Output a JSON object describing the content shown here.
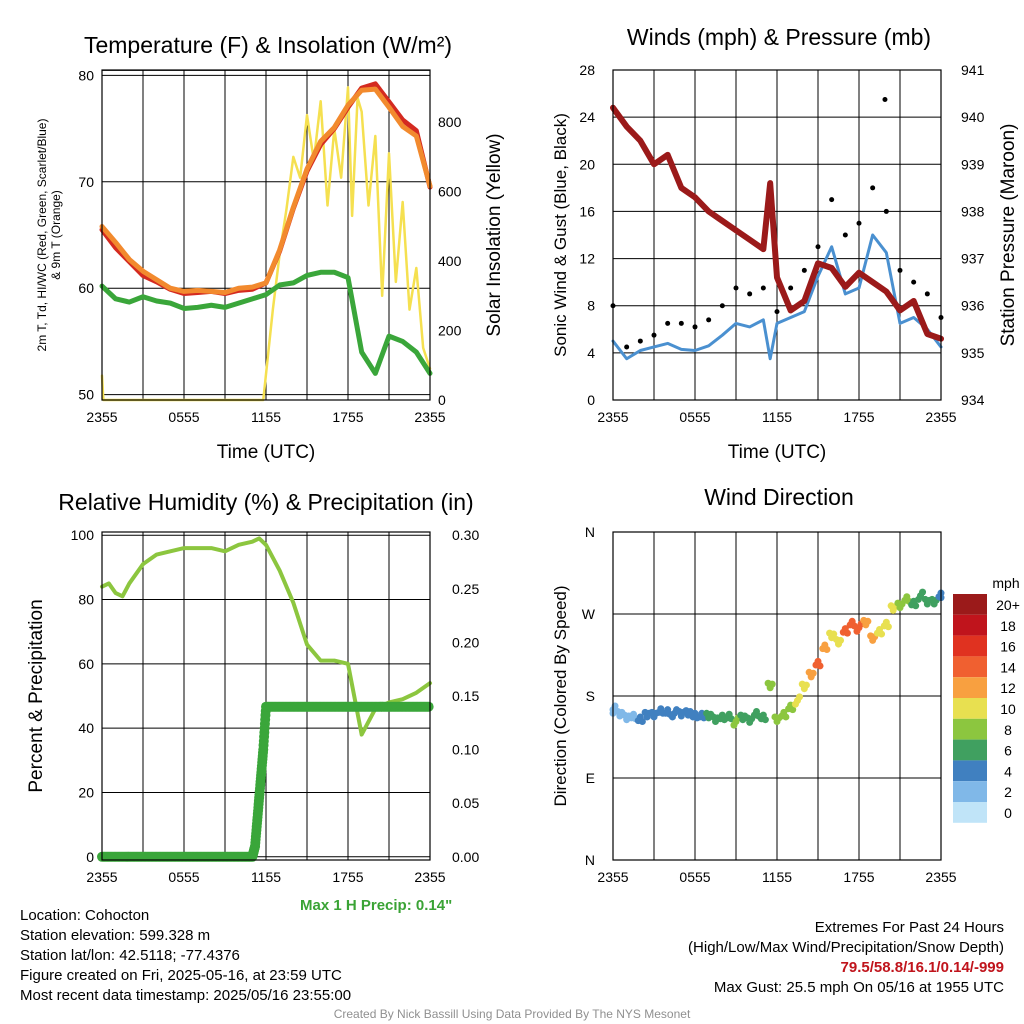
{
  "panels": {
    "temp": {
      "title": "Temperature (F) & Insolation (W/m²)",
      "xlabel": "Time (UTC)",
      "ylabel_left": [
        "2m T, T",
        "d",
        ", HI/WC (Red, Green, Scarlet/Blue)",
        "& 9m T (Orange)"
      ],
      "ylabel_right": "Solar Insolation (Yellow)"
    },
    "wind": {
      "title": "Winds (mph) & Pressure (mb)",
      "xlabel": "Time (UTC)",
      "ylabel_left": "Sonic Wind & Gust (Blue, Black)",
      "ylabel_right": "Station Pressure (Maroon)"
    },
    "rh": {
      "title": "Relative Humidity (%) & Precipitation (in)",
      "ylabel_left": "Percent & Precipitation",
      "max_precip": "Max 1 H Precip: 0.14\""
    },
    "dir": {
      "title": "Wind Direction",
      "ylabel_left": "Direction (Colored By Speed)",
      "legend_title": "mph"
    }
  },
  "info_left": [
    "Location: Cohocton",
    "Station elevation: 599.328 m",
    "Station lat/lon: 42.5118; -77.4376",
    "Figure created on Fri, 2025-05-16, at 23:59 UTC",
    "Most recent data timestamp: 2025/05/16 23:55:00"
  ],
  "info_right": {
    "line1": "Extremes For Past 24 Hours",
    "line2": "(High/Low/Max Wind/Precipitation/Snow Depth)",
    "extremes": "79.5/58.8/16.1/0.14/-999",
    "gust": "Max Gust: 25.5 mph On 05/16 at 1955 UTC"
  },
  "credit": "Created By Nick Bassill Using Data Provided By The NYS Mesonet",
  "colors": {
    "temp": "#d42a20",
    "dewpoint": "#3aa63a",
    "temp9m": "#f28a2e",
    "solar": "#f5e050",
    "wind": "#4a90d0",
    "gust": "#000000",
    "pressure": "#9b1a1a",
    "rh": "#8cc63f",
    "precip": "#3aa63a"
  },
  "chart_data": [
    {
      "type": "line",
      "title": "Temperature (F) & Insolation (W/m²)",
      "x_ticks": [
        "2355",
        "0555",
        "1155",
        "1755",
        "2355"
      ],
      "ylim": [
        49.5,
        80.5
      ],
      "y_ticks": [
        50,
        60,
        70,
        80
      ],
      "y2lim": [
        0,
        950
      ],
      "y2_ticks": [
        0,
        200,
        400,
        600,
        800
      ],
      "series": [
        {
          "name": "2m T",
          "color": "#d42a20",
          "axis": "left",
          "x": [
            0,
            1,
            2,
            3,
            4,
            5,
            6,
            7,
            8,
            9,
            10,
            11,
            12,
            13,
            14,
            15,
            16,
            17,
            18,
            19,
            20,
            21,
            22,
            23,
            24
          ],
          "y": [
            65.5,
            63.8,
            62.5,
            61.2,
            60.6,
            59.9,
            59.5,
            59.6,
            59.7,
            59.5,
            59.8,
            59.9,
            60.5,
            63.5,
            67.5,
            71,
            73.5,
            75,
            77,
            78.8,
            79.2,
            77.5,
            75.8,
            74.8,
            69.5
          ]
        },
        {
          "name": "9m T",
          "color": "#f28a2e",
          "axis": "left",
          "x": [
            0,
            1,
            2,
            3,
            4,
            5,
            6,
            7,
            8,
            9,
            10,
            11,
            12,
            13,
            14,
            15,
            16,
            17,
            18,
            19,
            20,
            21,
            22,
            23,
            24
          ],
          "y": [
            65.8,
            64.3,
            62.7,
            61.6,
            60.8,
            60,
            59.7,
            59.8,
            59.7,
            59.6,
            60,
            60.1,
            60.5,
            63.6,
            67.6,
            71.2,
            73.8,
            75.1,
            77.2,
            78.6,
            78.7,
            77,
            75.2,
            74.3,
            69.6
          ]
        },
        {
          "name": "Td",
          "color": "#3aa63a",
          "axis": "left",
          "x": [
            0,
            1,
            2,
            3,
            4,
            5,
            6,
            7,
            8,
            9,
            10,
            11,
            12,
            13,
            14,
            15,
            16,
            17,
            18,
            19,
            20,
            21,
            22,
            23,
            24
          ],
          "y": [
            60.2,
            59,
            58.7,
            59.2,
            58.8,
            58.6,
            58.1,
            58.2,
            58.4,
            58.2,
            58.6,
            59,
            59.4,
            60.3,
            60.5,
            61.2,
            61.5,
            61.5,
            61,
            54,
            52,
            55.5,
            55,
            54,
            52
          ]
        },
        {
          "name": "Solar",
          "color": "#f5e050",
          "axis": "right",
          "x": [
            0,
            0.1,
            1,
            2,
            3,
            4,
            5,
            6,
            7,
            8,
            9,
            10,
            11,
            11.8,
            12.5,
            13,
            13.5,
            14,
            14.5,
            15,
            15.5,
            16,
            16.5,
            17,
            17.5,
            18,
            18.3,
            18.7,
            19,
            19.5,
            20,
            20.5,
            21,
            21.5,
            22,
            22.5,
            23,
            23.5,
            24
          ],
          "y": [
            70,
            0,
            0,
            0,
            0,
            0,
            0,
            0,
            0,
            0,
            0,
            0,
            0,
            0,
            260,
            420,
            550,
            700,
            640,
            820,
            690,
            860,
            560,
            780,
            640,
            900,
            530,
            870,
            830,
            560,
            760,
            300,
            710,
            340,
            570,
            260,
            380,
            150,
            90
          ]
        }
      ]
    },
    {
      "type": "line",
      "title": "Winds (mph) & Pressure (mb)",
      "x_ticks": [
        "2355",
        "0555",
        "1155",
        "1755",
        "2355"
      ],
      "ylim": [
        0,
        28
      ],
      "y_ticks": [
        0,
        4,
        8,
        12,
        16,
        20,
        24,
        28
      ],
      "y2lim": [
        934,
        941
      ],
      "y2_ticks": [
        934,
        935,
        936,
        937,
        938,
        939,
        940,
        941
      ],
      "series": [
        {
          "name": "Sonic Wind",
          "color": "#4a90d0",
          "axis": "left",
          "x": [
            0,
            1,
            2,
            3,
            4,
            5,
            6,
            7,
            8,
            9,
            10,
            11,
            11.5,
            12,
            13,
            14,
            15,
            16,
            17,
            18,
            19,
            20,
            21,
            22,
            23,
            24
          ],
          "y": [
            5,
            3.5,
            4.2,
            4.5,
            4.8,
            4.3,
            4.2,
            4.6,
            5.5,
            6.5,
            6.2,
            6.8,
            3.5,
            6.5,
            7,
            7.5,
            10.5,
            13,
            9,
            9.5,
            14,
            12.5,
            6.5,
            7,
            6,
            4.5
          ]
        },
        {
          "name": "Gust",
          "color": "#000000",
          "axis": "left",
          "x": [
            0,
            1,
            2,
            3,
            4,
            5,
            6,
            7,
            8,
            9,
            10,
            11,
            12,
            13,
            14,
            15,
            16,
            17,
            18,
            19,
            19.9,
            20,
            21,
            22,
            23,
            24
          ],
          "y": [
            8,
            4.5,
            5,
            5.5,
            6.5,
            6.5,
            6.2,
            6.8,
            8,
            9.5,
            9,
            9.5,
            7.5,
            9.5,
            11,
            13,
            17,
            14,
            15,
            18,
            25.5,
            16,
            11,
            10,
            9,
            7
          ]
        },
        {
          "name": "Pressure",
          "color": "#9b1a1a",
          "axis": "right",
          "x": [
            0,
            1,
            2,
            3,
            4,
            5,
            6,
            7,
            8,
            9,
            10,
            11,
            11.5,
            12,
            13,
            14,
            15,
            16,
            17,
            18,
            19,
            20,
            21,
            22,
            23,
            24
          ],
          "y": [
            940.2,
            939.8,
            939.5,
            939.0,
            939.2,
            938.5,
            938.3,
            938.0,
            937.8,
            937.6,
            937.4,
            937.2,
            938.6,
            936.6,
            935.9,
            936.1,
            936.9,
            936.8,
            936.4,
            936.7,
            936.5,
            936.3,
            935.9,
            936.1,
            935.4,
            935.3
          ]
        }
      ]
    },
    {
      "type": "line",
      "title": "Relative Humidity (%) & Precipitation (in)",
      "x_ticks": [
        "2355",
        "0555",
        "1155",
        "1755",
        "2355"
      ],
      "ylim": [
        -1,
        101
      ],
      "y_ticks": [
        0,
        20,
        40,
        60,
        80,
        100
      ],
      "y2lim": [
        -0.003,
        0.303
      ],
      "y2_ticks": [
        0.0,
        0.05,
        0.1,
        0.15,
        0.2,
        0.25,
        0.3
      ],
      "series": [
        {
          "name": "RH",
          "color": "#8cc63f",
          "axis": "left",
          "x": [
            0,
            0.5,
            1,
            1.5,
            2,
            3,
            4,
            5,
            6,
            7,
            8,
            9,
            10,
            11,
            11.5,
            12,
            13,
            14,
            15,
            16,
            17,
            18,
            19,
            19.5,
            20,
            21,
            22,
            23,
            24
          ],
          "y": [
            84,
            85,
            82,
            81,
            85,
            91,
            94,
            95,
            96,
            96,
            96,
            95,
            97,
            98,
            99,
            97,
            89,
            79,
            66,
            61,
            61,
            60,
            38,
            42,
            46,
            48,
            49,
            51,
            54
          ]
        },
        {
          "name": "Precip",
          "color": "#3aa63a",
          "axis": "right",
          "x": [
            0,
            1,
            2,
            3,
            4,
            5,
            6,
            7,
            8,
            9,
            10,
            11,
            11.2,
            11.4,
            11.6,
            11.8,
            12,
            13,
            14,
            15,
            16,
            17,
            18,
            19,
            20,
            21,
            22,
            23,
            24
          ],
          "y": [
            0,
            0,
            0,
            0,
            0,
            0,
            0,
            0,
            0,
            0,
            0,
            0,
            0.01,
            0.04,
            0.07,
            0.1,
            0.14,
            0.14,
            0.14,
            0.14,
            0.14,
            0.14,
            0.14,
            0.14,
            0.14,
            0.14,
            0.14,
            0.14,
            0.14
          ]
        }
      ]
    },
    {
      "type": "scatter",
      "title": "Wind Direction",
      "x_ticks": [
        "2355",
        "0555",
        "1155",
        "1755",
        "2355"
      ],
      "y_ticks": [
        "N",
        "W",
        "S",
        "E",
        "N"
      ],
      "ylim": [
        0,
        360
      ],
      "legend": {
        "title": "mph",
        "labels": [
          "20+",
          "18",
          "16",
          "14",
          "12",
          "10",
          "8",
          "6",
          "4",
          "2",
          "0"
        ],
        "colors": [
          "#9b1a1a",
          "#c0141c",
          "#e03220",
          "#f06030",
          "#f8a040",
          "#e8e050",
          "#8cc63f",
          "#40a060",
          "#4080c0",
          "#80b8e8",
          "#c0e4f8"
        ]
      },
      "series": [
        {
          "name": "Direction",
          "x": [
            0,
            0.5,
            1,
            1.5,
            2,
            2.5,
            3,
            3.5,
            4,
            4.5,
            5,
            5.5,
            6,
            6.5,
            7,
            7.5,
            8,
            8.5,
            9,
            9.5,
            10,
            10.5,
            11,
            11.5,
            12,
            12.5,
            13,
            13.5,
            14,
            14.5,
            15,
            15.5,
            16,
            16.5,
            17,
            17.5,
            18,
            18.5,
            19,
            19.5,
            20,
            20.5,
            21,
            21.5,
            22,
            22.5,
            23,
            23.5,
            24
          ],
          "y": [
            165,
            160,
            158,
            157,
            156,
            158,
            160,
            162,
            163,
            161,
            160,
            163,
            158,
            160,
            157,
            155,
            155,
            158,
            152,
            156,
            155,
            160,
            158,
            190,
            155,
            158,
            168,
            175,
            190,
            205,
            215,
            235,
            245,
            240,
            250,
            260,
            255,
            260,
            245,
            250,
            260,
            275,
            280,
            285,
            282,
            290,
            283,
            285,
            290
          ],
          "speed": [
            1,
            1,
            2,
            2,
            3,
            3,
            4,
            3,
            4,
            4,
            4,
            4,
            4,
            4,
            5,
            5,
            6,
            6,
            7,
            5,
            6,
            5,
            6,
            7,
            7,
            8,
            8,
            9,
            10,
            12,
            13,
            12,
            9,
            10,
            13,
            14,
            14,
            12,
            11,
            10,
            9,
            9,
            8,
            8,
            6,
            6,
            5,
            5,
            4
          ]
        }
      ]
    }
  ]
}
